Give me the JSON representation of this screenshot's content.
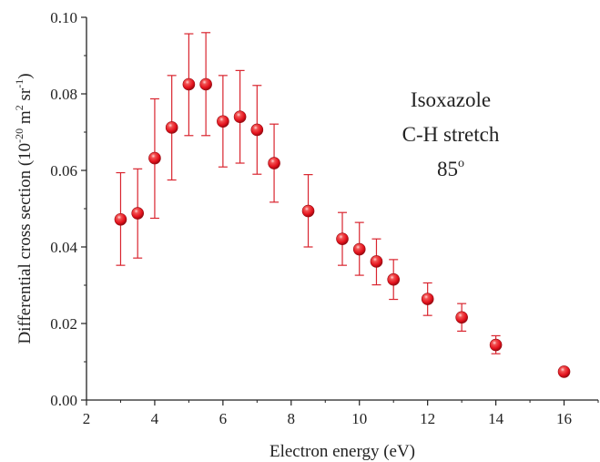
{
  "chart_data": {
    "type": "scatter",
    "xlabel": "Electron energy (eV)",
    "ylabel": {
      "text": "Differential cross section (10",
      "exp1": "-20",
      "mid": " m",
      "exp2": "2",
      "mid2": " sr",
      "exp3": "-1",
      "end": ")"
    },
    "xlim": [
      2,
      17
    ],
    "ylim": [
      0,
      0.1
    ],
    "xticks": [
      2,
      4,
      6,
      8,
      10,
      12,
      14,
      16
    ],
    "yticks": [
      0.0,
      0.02,
      0.04,
      0.06,
      0.08,
      0.1
    ],
    "ytick_labels": [
      "0.00",
      "0.02",
      "0.04",
      "0.06",
      "0.08",
      "0.10"
    ],
    "annotations": {
      "line1": "Isoxazole",
      "line2": "C-H stretch",
      "line3": "85",
      "line3_sup": "o"
    },
    "marker_color": "#e3101b",
    "errorbar_color": "#d9252f",
    "series": [
      {
        "points": [
          {
            "x": 3.0,
            "y": 0.0472,
            "lo": 0.0352,
            "hi": 0.0594
          },
          {
            "x": 3.5,
            "y": 0.0488,
            "lo": 0.0371,
            "hi": 0.0604
          },
          {
            "x": 4.0,
            "y": 0.0632,
            "lo": 0.0475,
            "hi": 0.0787
          },
          {
            "x": 4.5,
            "y": 0.0712,
            "lo": 0.0575,
            "hi": 0.0848
          },
          {
            "x": 5.0,
            "y": 0.0825,
            "lo": 0.0691,
            "hi": 0.0957
          },
          {
            "x": 5.5,
            "y": 0.0825,
            "lo": 0.0691,
            "hi": 0.096
          },
          {
            "x": 6.0,
            "y": 0.0728,
            "lo": 0.0609,
            "hi": 0.0848
          },
          {
            "x": 6.5,
            "y": 0.074,
            "lo": 0.0619,
            "hi": 0.0861
          },
          {
            "x": 7.0,
            "y": 0.0706,
            "lo": 0.059,
            "hi": 0.0822
          },
          {
            "x": 7.5,
            "y": 0.0619,
            "lo": 0.0517,
            "hi": 0.0721
          },
          {
            "x": 8.5,
            "y": 0.0494,
            "lo": 0.04,
            "hi": 0.0589
          },
          {
            "x": 9.5,
            "y": 0.0421,
            "lo": 0.0352,
            "hi": 0.049
          },
          {
            "x": 10.0,
            "y": 0.0394,
            "lo": 0.0326,
            "hi": 0.0464
          },
          {
            "x": 10.5,
            "y": 0.0362,
            "lo": 0.0301,
            "hi": 0.0421
          },
          {
            "x": 11.0,
            "y": 0.0315,
            "lo": 0.0263,
            "hi": 0.0367
          },
          {
            "x": 12.0,
            "y": 0.0264,
            "lo": 0.0221,
            "hi": 0.0306
          },
          {
            "x": 13.0,
            "y": 0.0216,
            "lo": 0.018,
            "hi": 0.0252
          },
          {
            "x": 14.0,
            "y": 0.0144,
            "lo": 0.0121,
            "hi": 0.0168
          },
          {
            "x": 16.0,
            "y": 0.0074,
            "lo": 0.0074,
            "hi": 0.0074
          }
        ]
      }
    ]
  }
}
